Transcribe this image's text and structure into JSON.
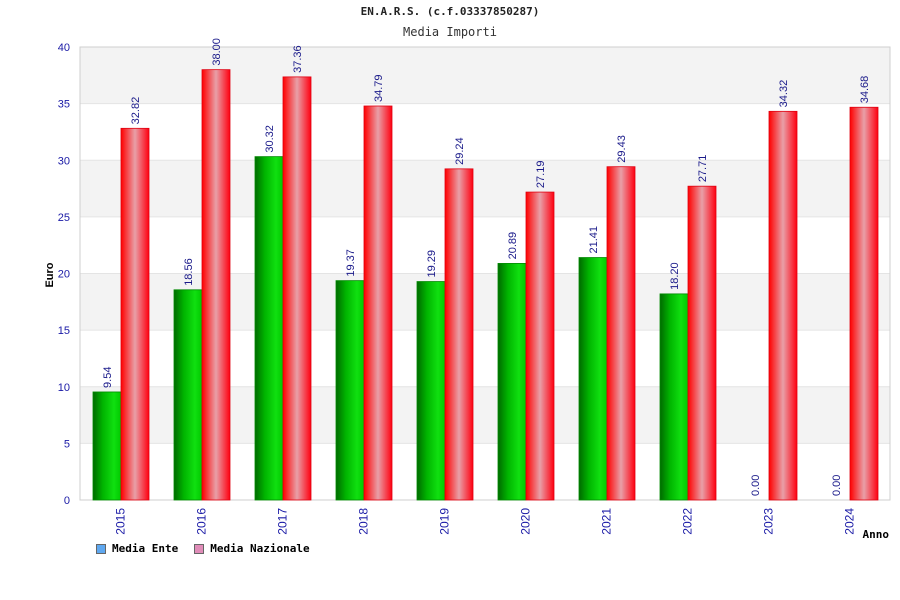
{
  "chart_data": {
    "type": "bar",
    "title": "EN.A.R.S. (c.f.03337850287)",
    "subtitle": "Media Importi",
    "xlabel": "Anno",
    "ylabel": "Euro",
    "ylim": [
      0,
      40
    ],
    "yticks": [
      0,
      5,
      10,
      15,
      20,
      25,
      30,
      35,
      40
    ],
    "categories": [
      "2015",
      "2016",
      "2017",
      "2018",
      "2019",
      "2020",
      "2021",
      "2022",
      "2023",
      "2024"
    ],
    "series": [
      {
        "name": "Media Ente",
        "values": [
          9.54,
          18.56,
          30.32,
          19.37,
          19.29,
          20.89,
          21.41,
          18.2,
          0.0,
          0.0
        ],
        "labels": [
          "9.54",
          "18.56",
          "30.32",
          "19.37",
          "19.29",
          "20.89",
          "21.41",
          "18.20",
          "0.00",
          "0.00"
        ],
        "color": "#00c000",
        "legend_color": "#5fa8f0"
      },
      {
        "name": "Media Nazionale",
        "values": [
          32.82,
          38.0,
          37.36,
          34.79,
          29.24,
          27.19,
          29.43,
          27.71,
          34.32,
          34.68
        ],
        "labels": [
          "32.82",
          "38.00",
          "37.36",
          "34.79",
          "29.24",
          "27.19",
          "29.43",
          "27.71",
          "34.32",
          "34.68"
        ],
        "color": "#ff1020",
        "legend_color": "#e08cb8"
      }
    ],
    "grid": true,
    "legend_position": "bottom-left"
  }
}
